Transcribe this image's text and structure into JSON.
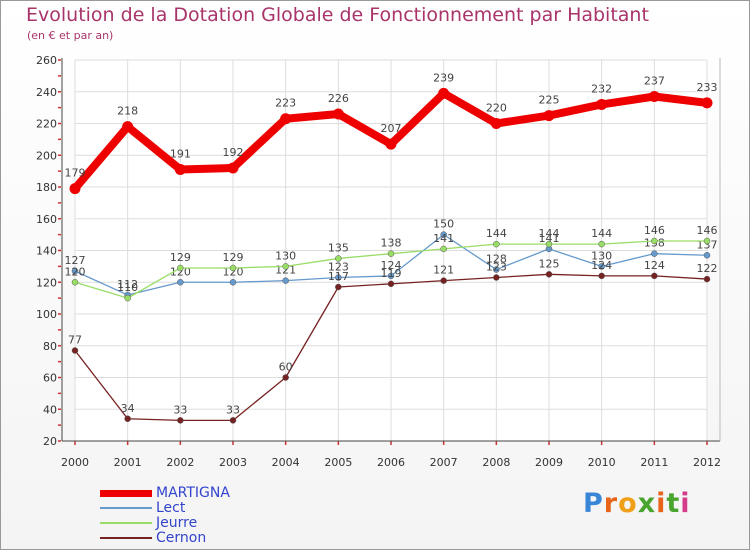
{
  "title": "Evolution de la Dotation Globale de Fonctionnement par Habitant",
  "subtitle": "(en € et par an)",
  "logo": "Proxiti",
  "chart_data": {
    "type": "line",
    "title": "Evolution de la Dotation Globale de Fonctionnement par Habitant",
    "ylabel": "(en € et par an)",
    "xlabel": "",
    "x": [
      "2000",
      "2001",
      "2002",
      "2003",
      "2004",
      "2005",
      "2006",
      "2007",
      "2008",
      "2009",
      "2010",
      "2011",
      "2012"
    ],
    "ylim": [
      20,
      260
    ],
    "yticks": [
      20,
      40,
      60,
      80,
      100,
      120,
      140,
      160,
      180,
      200,
      220,
      240,
      260
    ],
    "grid": true,
    "series": [
      {
        "name": "MARTIGNA",
        "color": "#ee0000",
        "width": 8,
        "values": [
          179,
          218,
          191,
          192,
          223,
          226,
          207,
          239,
          220,
          225,
          232,
          237,
          233
        ]
      },
      {
        "name": "Lect",
        "color": "#6699cc",
        "width": 1.3,
        "values": [
          127,
          112,
          120,
          120,
          121,
          123,
          124,
          150,
          128,
          141,
          130,
          138,
          137
        ]
      },
      {
        "name": "Jeurre",
        "color": "#99dd66",
        "width": 1.3,
        "values": [
          120,
          110,
          129,
          129,
          130,
          135,
          138,
          141,
          144,
          144,
          144,
          146,
          146
        ]
      },
      {
        "name": "Cernon",
        "color": "#772222",
        "width": 1.3,
        "values": [
          77,
          34,
          33,
          33,
          60,
          117,
          119,
          121,
          123,
          125,
          124,
          124,
          122
        ]
      }
    ]
  }
}
